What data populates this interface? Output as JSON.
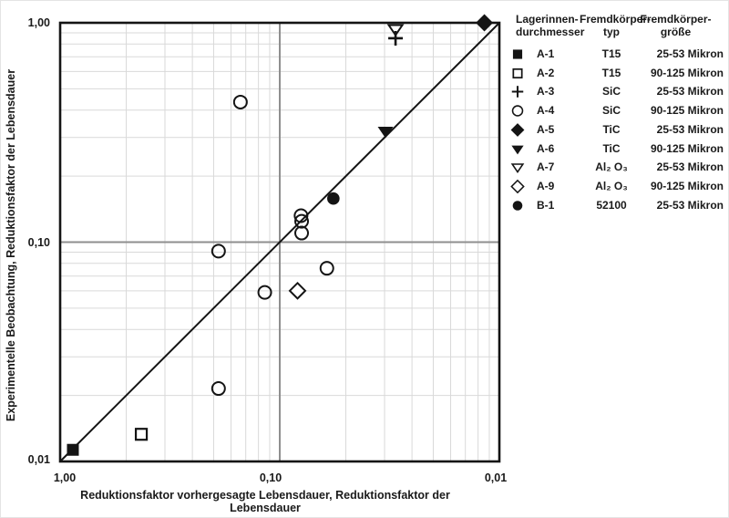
{
  "chart_data": {
    "type": "scatter",
    "title": "",
    "xlabel": "Reduktionsfaktor vorhergesagte Lebensdauer, Reduktionsfaktor der Lebensdauer",
    "ylabel": "Experimentelle Beobachtung, Reduktionsfaktor der Lebensdauer",
    "x_scale": "log-reversed",
    "y_scale": "log",
    "x_range": [
      1.0,
      0.01
    ],
    "y_range": [
      1.0,
      0.01
    ],
    "x_tick_labels": [
      "1,00",
      "0,10",
      "0,01"
    ],
    "y_tick_labels": [
      "1,00",
      "0,10",
      "0,01"
    ],
    "grid": "log minor gridlines both axes, major line at 0,10",
    "reference_line": {
      "from_xy": [
        1.0,
        0.01
      ],
      "to_xy": [
        0.01,
        1.0
      ]
    },
    "series": [
      {
        "name": "A-1",
        "marker": "filled-square",
        "type": "T15",
        "size": "25-53 Mikron",
        "points": [
          [
            0.875,
            0.0113
          ]
        ]
      },
      {
        "name": "A-2",
        "marker": "open-square",
        "type": "T15",
        "size": "90-125 Mikron",
        "points": [
          [
            0.427,
            0.0133
          ]
        ]
      },
      {
        "name": "A-3",
        "marker": "plus",
        "type": "SiC",
        "size": "25-53 Mikron",
        "points": [
          [
            0.0297,
            0.85
          ]
        ]
      },
      {
        "name": "A-4",
        "marker": "open-circle",
        "type": "SiC",
        "size": "90-125 Mikron",
        "points": [
          [
            0.151,
            0.435
          ],
          [
            0.19,
            0.091
          ],
          [
            0.08,
            0.132
          ],
          [
            0.0795,
            0.1245
          ],
          [
            0.0795,
            0.11
          ],
          [
            0.061,
            0.076
          ],
          [
            0.117,
            0.059
          ],
          [
            0.19,
            0.0215
          ]
        ]
      },
      {
        "name": "A-5",
        "marker": "filled-diamond",
        "type": "TiC",
        "size": "25-53 Mikron",
        "points": [
          [
            0.0117,
            1.0
          ]
        ]
      },
      {
        "name": "A-6",
        "marker": "filled-triangle-down",
        "type": "TiC",
        "size": "90-125 Mikron",
        "points": [
          [
            0.033,
            0.32
          ]
        ]
      },
      {
        "name": "A-7",
        "marker": "open-triangle-down",
        "type": "Al₂ O₃",
        "size": "25-53 Mikron",
        "points": [
          [
            0.0297,
            0.935
          ]
        ]
      },
      {
        "name": "A-9",
        "marker": "open-diamond",
        "type": "Al₂ O₃",
        "size": "90-125 Mikron",
        "points": [
          [
            0.083,
            0.06
          ]
        ]
      },
      {
        "name": "B-1",
        "marker": "filled-circle",
        "type": "52100",
        "size": "25-53 Mikron",
        "points": [
          [
            0.057,
            0.158
          ]
        ]
      }
    ]
  },
  "legend": {
    "header_col1": "Lagerinnen-\ndurchmesser",
    "header_col2": "Fremdkörper-\ntyp",
    "header_col3": "Fremdkörper-\ngröße"
  },
  "colors": {
    "ink": "#141414",
    "minor_grid": "#d9d9d9",
    "major_grid": "#8f8f8f",
    "background": "#ffffff"
  }
}
